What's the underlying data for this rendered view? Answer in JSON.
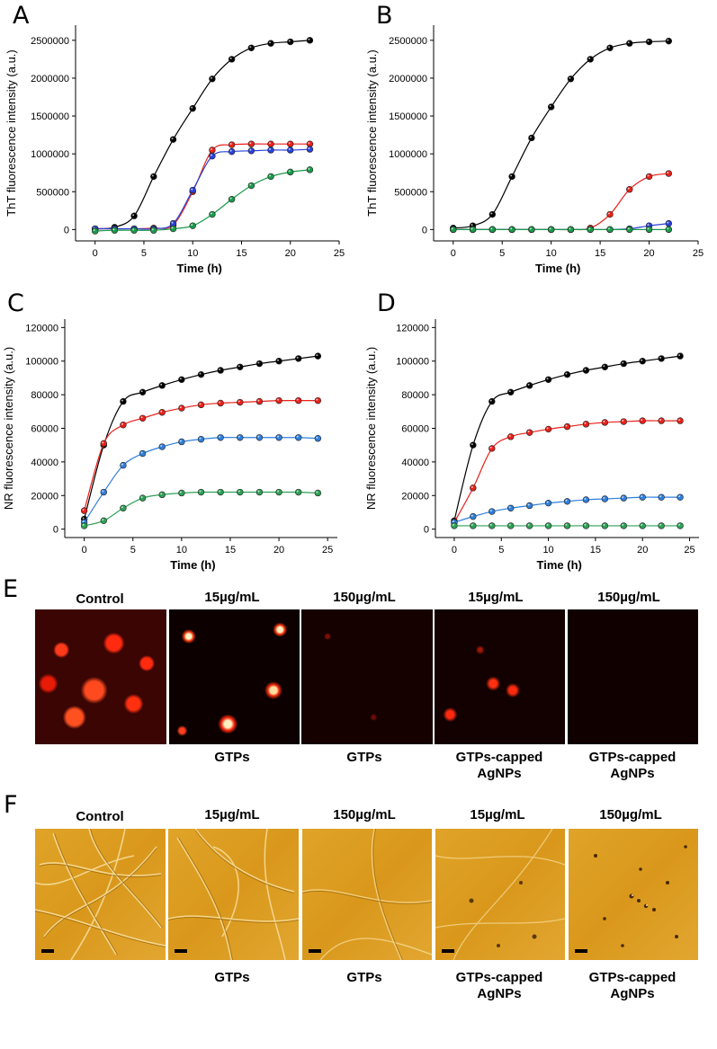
{
  "panels": {
    "A": "A",
    "B": "B",
    "C": "C",
    "D": "D",
    "E": "E",
    "F": "F"
  },
  "chart_data": [
    {
      "id": "A",
      "type": "line",
      "xlabel": "Time (h)",
      "ylabel": "ThT fluorescence intensity (a.u.)",
      "xlim": [
        -2,
        25
      ],
      "ylim": [
        -150000,
        2700000
      ],
      "xticks": [
        0,
        5,
        10,
        15,
        20,
        25
      ],
      "yticks": [
        0,
        500000,
        1000000,
        1500000,
        2000000,
        2500000
      ],
      "xtick_labels": [
        "0",
        "5",
        "10",
        "15",
        "20",
        "25"
      ],
      "ytick_labels": [
        "0",
        "500000",
        "1000000",
        "1500000",
        "2000000",
        "2500000"
      ],
      "series": [
        {
          "name": "Control",
          "color": "#000000",
          "x": [
            0,
            2,
            4,
            6,
            8,
            10,
            12,
            14,
            16,
            18,
            20,
            22
          ],
          "y": [
            10000,
            30000,
            180000,
            700000,
            1190000,
            1600000,
            1990000,
            2250000,
            2400000,
            2460000,
            2480000,
            2500000
          ]
        },
        {
          "name": "red",
          "color": "#e8211a",
          "x": [
            0,
            2,
            4,
            6,
            8,
            10,
            12,
            14,
            16,
            18,
            20,
            22
          ],
          "y": [
            10000,
            10000,
            10000,
            20000,
            60000,
            500000,
            1050000,
            1120000,
            1130000,
            1130000,
            1130000,
            1130000
          ]
        },
        {
          "name": "blue",
          "color": "#2a41d8",
          "x": [
            0,
            2,
            4,
            6,
            8,
            10,
            12,
            14,
            16,
            18,
            20,
            22
          ],
          "y": [
            10000,
            10000,
            10000,
            10000,
            80000,
            520000,
            970000,
            1030000,
            1040000,
            1050000,
            1050000,
            1060000
          ]
        },
        {
          "name": "green",
          "color": "#1a9a4a",
          "x": [
            0,
            2,
            4,
            6,
            8,
            10,
            12,
            14,
            16,
            18,
            20,
            22
          ],
          "y": [
            -20000,
            -10000,
            -10000,
            -10000,
            10000,
            50000,
            200000,
            400000,
            580000,
            700000,
            760000,
            790000
          ]
        }
      ]
    },
    {
      "id": "B",
      "type": "line",
      "xlabel": "Time (h)",
      "ylabel": "ThT fluorescence intensity (a.u.)",
      "xlim": [
        -2,
        25
      ],
      "ylim": [
        -150000,
        2700000
      ],
      "xticks": [
        0,
        5,
        10,
        15,
        20,
        25
      ],
      "yticks": [
        0,
        500000,
        1000000,
        1500000,
        2000000,
        2500000
      ],
      "xtick_labels": [
        "0",
        "5",
        "10",
        "15",
        "20",
        "25"
      ],
      "ytick_labels": [
        "0",
        "500000",
        "1000000",
        "1500000",
        "2000000",
        "2500000"
      ],
      "series": [
        {
          "name": "Control",
          "color": "#000000",
          "x": [
            0,
            2,
            4,
            6,
            8,
            10,
            12,
            14,
            16,
            18,
            20,
            22
          ],
          "y": [
            20000,
            50000,
            200000,
            700000,
            1210000,
            1620000,
            1990000,
            2250000,
            2400000,
            2460000,
            2480000,
            2490000
          ]
        },
        {
          "name": "red",
          "color": "#e8211a",
          "x": [
            0,
            2,
            4,
            6,
            8,
            10,
            12,
            14,
            16,
            18,
            20,
            22
          ],
          "y": [
            0,
            0,
            0,
            0,
            0,
            0,
            0,
            20000,
            200000,
            530000,
            700000,
            740000
          ]
        },
        {
          "name": "blue",
          "color": "#2a41d8",
          "x": [
            0,
            2,
            4,
            6,
            8,
            10,
            12,
            14,
            16,
            18,
            20,
            22
          ],
          "y": [
            0,
            0,
            0,
            0,
            0,
            0,
            0,
            0,
            0,
            10000,
            50000,
            80000
          ]
        },
        {
          "name": "green",
          "color": "#1a9a4a",
          "x": [
            0,
            2,
            4,
            6,
            8,
            10,
            12,
            14,
            16,
            18,
            20,
            22
          ],
          "y": [
            0,
            0,
            0,
            0,
            0,
            0,
            0,
            0,
            0,
            0,
            0,
            0
          ]
        }
      ]
    },
    {
      "id": "C",
      "type": "line",
      "xlabel": "Time (h)",
      "ylabel": "NR fluorescence intensity (a.u.)",
      "xlim": [
        -2,
        26
      ],
      "ylim": [
        -5000,
        125000
      ],
      "xticks": [
        0,
        5,
        10,
        15,
        20,
        25
      ],
      "yticks": [
        0,
        20000,
        40000,
        60000,
        80000,
        100000,
        120000
      ],
      "xtick_labels": [
        "0",
        "5",
        "10",
        "15",
        "20",
        "25"
      ],
      "ytick_labels": [
        "0",
        "20000",
        "40000",
        "60000",
        "80000",
        "100000",
        "120000"
      ],
      "series": [
        {
          "name": "Control",
          "color": "#000000",
          "x": [
            0,
            2,
            4,
            6,
            8,
            10,
            12,
            14,
            16,
            18,
            20,
            22,
            24
          ],
          "y": [
            6000,
            50000,
            76000,
            81500,
            85500,
            89000,
            92000,
            94500,
            96500,
            98500,
            100000,
            101500,
            103000
          ]
        },
        {
          "name": "red",
          "color": "#e8211a",
          "x": [
            0,
            2,
            4,
            6,
            8,
            10,
            12,
            14,
            16,
            18,
            20,
            22,
            24
          ],
          "y": [
            11000,
            51000,
            62000,
            66000,
            69500,
            72000,
            74000,
            75000,
            75500,
            76000,
            76500,
            76500,
            76500
          ]
        },
        {
          "name": "blue",
          "color": "#2f7fd9",
          "x": [
            0,
            2,
            4,
            6,
            8,
            10,
            12,
            14,
            16,
            18,
            20,
            22,
            24
          ],
          "y": [
            4000,
            22000,
            38000,
            45000,
            49000,
            52000,
            53500,
            54500,
            54500,
            54500,
            54500,
            54500,
            54000
          ]
        },
        {
          "name": "green",
          "color": "#2ea055",
          "x": [
            0,
            2,
            4,
            6,
            8,
            10,
            12,
            14,
            16,
            18,
            20,
            22,
            24
          ],
          "y": [
            2000,
            5000,
            12500,
            18500,
            20500,
            21500,
            22000,
            22000,
            22000,
            22000,
            22000,
            22000,
            21500
          ]
        }
      ]
    },
    {
      "id": "D",
      "type": "line",
      "xlabel": "Time (h)",
      "ylabel": "NR fluorescence intensity (a.u.)",
      "xlim": [
        -2,
        26
      ],
      "ylim": [
        -5000,
        125000
      ],
      "xticks": [
        0,
        5,
        10,
        15,
        20,
        25
      ],
      "yticks": [
        0,
        20000,
        40000,
        60000,
        80000,
        100000,
        120000
      ],
      "xtick_labels": [
        "0",
        "5",
        "10",
        "15",
        "20",
        "25"
      ],
      "ytick_labels": [
        "0",
        "20000",
        "40000",
        "60000",
        "80000",
        "100000",
        "120000"
      ],
      "series": [
        {
          "name": "Control",
          "color": "#000000",
          "x": [
            0,
            2,
            4,
            6,
            8,
            10,
            12,
            14,
            16,
            18,
            20,
            22,
            24
          ],
          "y": [
            5000,
            50000,
            76000,
            81500,
            85500,
            89000,
            92000,
            94500,
            96500,
            98500,
            100000,
            101500,
            103000
          ]
        },
        {
          "name": "red",
          "color": "#e8211a",
          "x": [
            0,
            2,
            4,
            6,
            8,
            10,
            12,
            14,
            16,
            18,
            20,
            22,
            24
          ],
          "y": [
            4000,
            24500,
            48000,
            55000,
            57500,
            59500,
            61000,
            62500,
            63500,
            64000,
            64500,
            64500,
            64500
          ]
        },
        {
          "name": "blue",
          "color": "#2f7fd9",
          "x": [
            0,
            2,
            4,
            6,
            8,
            10,
            12,
            14,
            16,
            18,
            20,
            22,
            24
          ],
          "y": [
            4000,
            7500,
            10500,
            12500,
            14000,
            15500,
            16500,
            17500,
            18000,
            18500,
            19000,
            19000,
            19000
          ]
        },
        {
          "name": "green",
          "color": "#2ea055",
          "x": [
            0,
            2,
            4,
            6,
            8,
            10,
            12,
            14,
            16,
            18,
            20,
            22,
            24
          ],
          "y": [
            2000,
            2000,
            2000,
            2000,
            2000,
            2000,
            2000,
            2000,
            2000,
            2000,
            2000,
            2000,
            2000
          ]
        }
      ]
    }
  ],
  "panel_e": {
    "top_labels": [
      "Control",
      "15µg/mL",
      "150µg/mL",
      "15µg/mL",
      "150µg/mL"
    ],
    "bottom_labels": [
      "GTPs",
      "GTPs",
      "GTPs-capped\nAgNPs",
      "GTPs-capped\nAgNPs"
    ]
  },
  "panel_f": {
    "top_labels": [
      "Control",
      "15µg/mL",
      "150µg/mL",
      "15µg/mL",
      "150µg/mL"
    ],
    "bottom_labels": [
      "GTPs",
      "GTPs",
      "GTPs-capped\nAgNPs",
      "GTPs-capped\nAgNPs"
    ]
  }
}
